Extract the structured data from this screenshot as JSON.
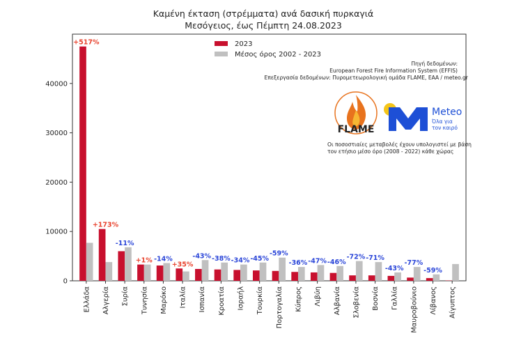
{
  "colors": {
    "series_2023": "#c8102e",
    "series_avg": "#c0c0c0",
    "pct_positive": "#e8432e",
    "pct_negative": "#2a45d8",
    "meteo_blue": "#1d4fd6",
    "meteo_sun": "#f5c518",
    "flame_orange": "#e8731e"
  },
  "logos": {
    "flame_text": "FLAME",
    "meteo_text": "Meteo",
    "meteo_tagline_1": "Όλα για",
    "meteo_tagline_2": "τον καιρό"
  },
  "source_lines": [
    "Πηγή δεδομένων:",
    "European Forest Fire Information System (EFFIS)",
    "Επεξεργασία δεδομένων: Πυρομετεωρολογική ομάδα FLAME, ΕΑΑ / meteo.gr"
  ],
  "note_lines": [
    "Οι ποσοστιαίες μεταβολές έχουν υπολογιστεί με βάση",
    "τον ετήσιο μέσο όρο (2008 - 2022) κάθε χώρας"
  ],
  "chart_data": {
    "type": "bar",
    "title": "Καμένη έκταση (στρέμματα) ανά δασική πυρκαγιά",
    "subtitle": "Μεσόγειος, έως Πέμπτη 24.08.2023",
    "ylim": [
      0,
      50000
    ],
    "yticks": [
      0,
      10000,
      20000,
      30000,
      40000
    ],
    "ytick_labels": [
      "0",
      "10000",
      "20000",
      "30000",
      "40000"
    ],
    "grid": false,
    "legend_position": "top-center",
    "categories": [
      "Ελλάδα",
      "Αλγερία",
      "Συρία",
      "Τυνησία",
      "Μαρόκο",
      "Ιταλία",
      "Ισπανία",
      "Κροατία",
      "Ισραήλ",
      "Τουρκία",
      "Πορτογαλία",
      "Κύπρος",
      "Λιβύη",
      "Αλβανία",
      "Σλοβενία",
      "Βοσνία",
      "Γαλλία",
      "Μαυροβούνιο",
      "Λίβανος",
      "Αίγυπτος"
    ],
    "series": [
      {
        "name": "2023",
        "values": [
          47500,
          10500,
          6000,
          3300,
          3100,
          2500,
          2400,
          2300,
          2200,
          2100,
          2000,
          1800,
          1700,
          1600,
          1100,
          1100,
          1000,
          650,
          550,
          60
        ]
      },
      {
        "name": "Μέσος όρος 2002 - 2023",
        "values": [
          7700,
          3800,
          6800,
          3300,
          3600,
          1900,
          4200,
          3700,
          3300,
          3700,
          4700,
          2800,
          3200,
          3000,
          4000,
          3800,
          1700,
          2800,
          1300,
          3400
        ]
      }
    ],
    "annotations": [
      "+517%",
      "+173%",
      "-11%",
      "+1%",
      "-14%",
      "+35%",
      "-43%",
      "-38%",
      "-34%",
      "-45%",
      "-59%",
      "-36%",
      "-47%",
      "-46%",
      "-72%",
      "-71%",
      "-43%",
      "-77%",
      "-59%",
      ""
    ]
  }
}
